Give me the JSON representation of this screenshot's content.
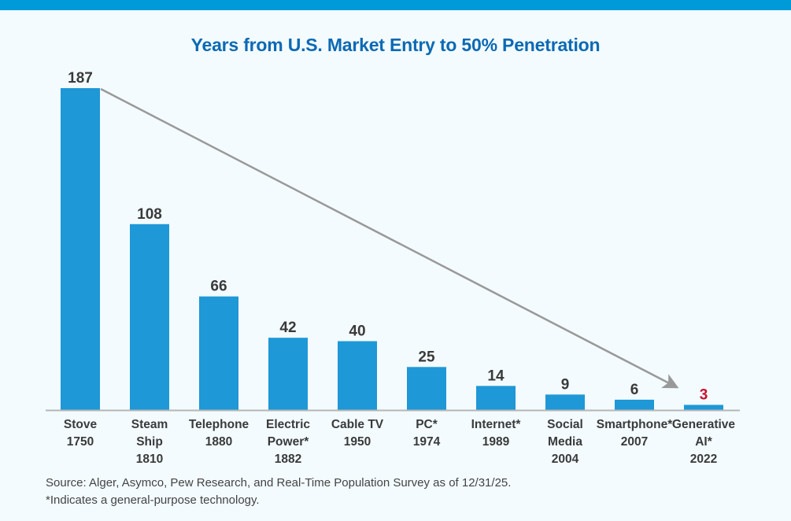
{
  "chart_data": {
    "type": "bar",
    "title": "Years from U.S. Market Entry to 50% Penetration",
    "categories": [
      [
        "Stove",
        "1750"
      ],
      [
        "Steam",
        "Ship",
        "1810"
      ],
      [
        "Telephone",
        "1880"
      ],
      [
        "Electric",
        "Power*",
        "1882"
      ],
      [
        "Cable TV",
        "1950"
      ],
      [
        "PC*",
        "1974"
      ],
      [
        "Internet*",
        "1989"
      ],
      [
        "Social",
        "Media",
        "2004"
      ],
      [
        "Smartphone*",
        "2007"
      ],
      [
        "Generative",
        "AI*",
        "2022"
      ]
    ],
    "values": [
      187,
      108,
      66,
      42,
      40,
      25,
      14,
      9,
      6,
      3
    ],
    "data_labels": [
      "187",
      "108",
      "66",
      "42",
      "40",
      "25",
      "14",
      "9",
      "6",
      "3"
    ],
    "highlight_index": 9,
    "ylim": [
      0,
      187
    ],
    "grid": false,
    "annotation": "arrow from Stove bar top to Generative AI bar",
    "colors": {
      "bar": "#1e98d6",
      "label": "#3a3a3a",
      "highlight_label": "#c8102e",
      "title": "#0b69b4",
      "arrow": "#999999",
      "baseline": "#b5b5b5",
      "top_bar": "#009ad9"
    }
  },
  "footnotes": {
    "source": "Source: Alger, Asymco, Pew Research, and Real-Time Population Survey as of 12/31/25.",
    "note": "*Indicates a general-purpose technology."
  }
}
